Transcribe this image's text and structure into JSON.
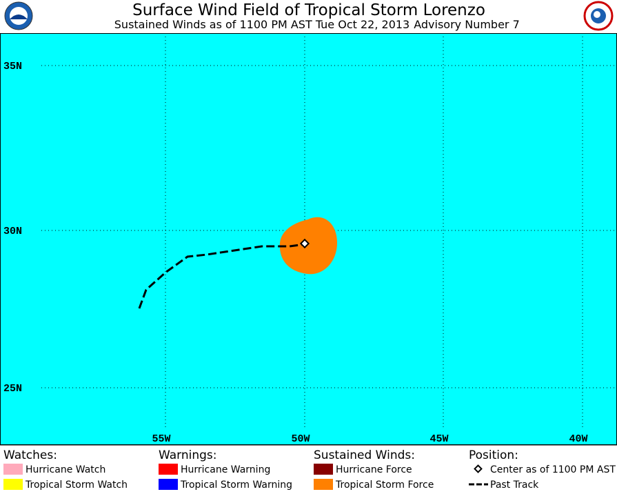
{
  "header": {
    "title": "Surface Wind Field of Tropical Storm Lorenzo",
    "subtitle": "Sustained Winds as of 1100 PM AST Tue Oct 22, 2013",
    "advisory": "Advisory Number 7"
  },
  "map": {
    "lat_labels": [
      "35N",
      "30N",
      "25N"
    ],
    "lon_labels": [
      "55W",
      "50W",
      "45W",
      "40W"
    ]
  },
  "legend": {
    "groups": [
      {
        "heading": "Watches:",
        "items": [
          "Hurricane Watch",
          "Tropical Storm Watch"
        ]
      },
      {
        "heading": "Warnings:",
        "items": [
          "Hurricane Warning",
          "Tropical Storm Warning"
        ]
      },
      {
        "heading": "Sustained Winds:",
        "items": [
          "Hurricane Force",
          "Tropical Storm Force"
        ]
      },
      {
        "heading": "Position:",
        "items": [
          "Center as of 1100 PM AST",
          "Past Track"
        ]
      }
    ]
  }
}
